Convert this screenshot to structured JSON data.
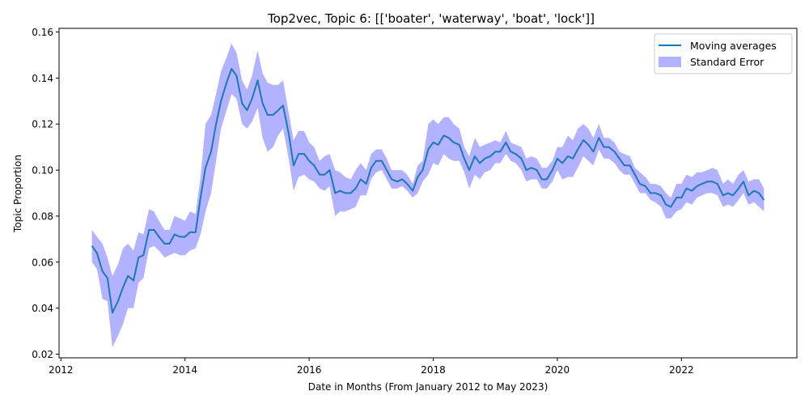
{
  "chart_data": {
    "type": "line",
    "title": "Top2vec, Topic 6: [['boater', 'waterway', 'boat', 'lock']]",
    "xlabel": "Date in Months (From January 2012 to May 2023)",
    "ylabel": "Topic Proportion",
    "xlim": [
      2011.97,
      2023.86
    ],
    "ylim": [
      0.0184,
      0.1616
    ],
    "xticks": [
      2012,
      2014,
      2016,
      2018,
      2020,
      2022
    ],
    "xtick_labels": [
      "2012",
      "2014",
      "2016",
      "2018",
      "2020",
      "2022"
    ],
    "yticks": [
      0.02,
      0.04,
      0.06,
      0.08,
      0.1,
      0.12,
      0.14,
      0.16
    ],
    "ytick_labels": [
      "0.02",
      "0.04",
      "0.06",
      "0.08",
      "0.10",
      "0.12",
      "0.14",
      "0.16"
    ],
    "grid": false,
    "legend_position": "top-right",
    "x": [
      2012.5,
      2012.58,
      2012.67,
      2012.75,
      2012.83,
      2012.92,
      2013.0,
      2013.08,
      2013.17,
      2013.25,
      2013.33,
      2013.42,
      2013.5,
      2013.58,
      2013.67,
      2013.75,
      2013.83,
      2013.92,
      2014.0,
      2014.08,
      2014.17,
      2014.25,
      2014.33,
      2014.42,
      2014.5,
      2014.58,
      2014.67,
      2014.75,
      2014.83,
      2014.92,
      2015.0,
      2015.08,
      2015.17,
      2015.25,
      2015.33,
      2015.42,
      2015.5,
      2015.58,
      2015.67,
      2015.75,
      2015.83,
      2015.92,
      2016.0,
      2016.08,
      2016.17,
      2016.25,
      2016.33,
      2016.42,
      2016.5,
      2016.58,
      2016.67,
      2016.75,
      2016.83,
      2016.92,
      2017.0,
      2017.08,
      2017.17,
      2017.25,
      2017.33,
      2017.42,
      2017.5,
      2017.58,
      2017.67,
      2017.75,
      2017.83,
      2017.92,
      2018.0,
      2018.08,
      2018.17,
      2018.25,
      2018.33,
      2018.42,
      2018.5,
      2018.58,
      2018.67,
      2018.75,
      2018.83,
      2018.92,
      2019.0,
      2019.08,
      2019.17,
      2019.25,
      2019.33,
      2019.42,
      2019.5,
      2019.58,
      2019.67,
      2019.75,
      2019.83,
      2019.92,
      2020.0,
      2020.08,
      2020.17,
      2020.25,
      2020.33,
      2020.42,
      2020.5,
      2020.58,
      2020.67,
      2020.75,
      2020.83,
      2020.92,
      2021.0,
      2021.08,
      2021.17,
      2021.25,
      2021.33,
      2021.42,
      2021.5,
      2021.58,
      2021.67,
      2021.75,
      2021.83,
      2021.92,
      2022.0,
      2022.08,
      2022.17,
      2022.25,
      2022.33,
      2022.42,
      2022.5,
      2022.58,
      2022.67,
      2022.75,
      2022.83,
      2022.92,
      2023.0,
      2023.08,
      2023.17,
      2023.25,
      2023.33
    ],
    "series": [
      {
        "name": "Moving averages",
        "color": "#1f77b4",
        "values": [
          0.067,
          0.064,
          0.056,
          0.053,
          0.038,
          0.043,
          0.049,
          0.054,
          0.052,
          0.062,
          0.063,
          0.074,
          0.074,
          0.071,
          0.068,
          0.068,
          0.072,
          0.071,
          0.071,
          0.073,
          0.073,
          0.088,
          0.101,
          0.108,
          0.12,
          0.13,
          0.138,
          0.144,
          0.141,
          0.129,
          0.126,
          0.131,
          0.139,
          0.129,
          0.124,
          0.124,
          0.126,
          0.128,
          0.116,
          0.102,
          0.107,
          0.107,
          0.104,
          0.102,
          0.098,
          0.098,
          0.1,
          0.09,
          0.091,
          0.09,
          0.09,
          0.092,
          0.096,
          0.094,
          0.101,
          0.104,
          0.104,
          0.1,
          0.096,
          0.095,
          0.096,
          0.094,
          0.091,
          0.097,
          0.1,
          0.109,
          0.112,
          0.111,
          0.115,
          0.114,
          0.112,
          0.111,
          0.105,
          0.1,
          0.106,
          0.103,
          0.105,
          0.106,
          0.108,
          0.108,
          0.112,
          0.108,
          0.107,
          0.105,
          0.1,
          0.101,
          0.1,
          0.096,
          0.096,
          0.1,
          0.105,
          0.103,
          0.106,
          0.105,
          0.109,
          0.113,
          0.111,
          0.108,
          0.114,
          0.11,
          0.11,
          0.108,
          0.105,
          0.102,
          0.102,
          0.098,
          0.094,
          0.093,
          0.09,
          0.09,
          0.089,
          0.085,
          0.084,
          0.088,
          0.088,
          0.092,
          0.091,
          0.093,
          0.094,
          0.095,
          0.095,
          0.094,
          0.089,
          0.09,
          0.089,
          0.092,
          0.095,
          0.089,
          0.091,
          0.09,
          0.087
        ]
      }
    ],
    "band": {
      "name": "Standard Error",
      "color": "#0000ff",
      "upper": [
        0.074,
        0.071,
        0.068,
        0.062,
        0.054,
        0.059,
        0.066,
        0.068,
        0.065,
        0.073,
        0.072,
        0.083,
        0.082,
        0.078,
        0.074,
        0.074,
        0.08,
        0.079,
        0.078,
        0.082,
        0.081,
        0.097,
        0.12,
        0.124,
        0.133,
        0.143,
        0.149,
        0.155,
        0.151,
        0.139,
        0.135,
        0.141,
        0.152,
        0.142,
        0.138,
        0.137,
        0.137,
        0.139,
        0.125,
        0.113,
        0.117,
        0.117,
        0.112,
        0.11,
        0.104,
        0.106,
        0.107,
        0.1,
        0.099,
        0.097,
        0.096,
        0.1,
        0.103,
        0.1,
        0.107,
        0.109,
        0.109,
        0.105,
        0.1,
        0.1,
        0.1,
        0.098,
        0.094,
        0.102,
        0.104,
        0.12,
        0.122,
        0.12,
        0.123,
        0.123,
        0.12,
        0.118,
        0.11,
        0.106,
        0.114,
        0.11,
        0.111,
        0.112,
        0.113,
        0.112,
        0.117,
        0.112,
        0.111,
        0.11,
        0.105,
        0.106,
        0.105,
        0.101,
        0.101,
        0.104,
        0.11,
        0.11,
        0.115,
        0.113,
        0.118,
        0.12,
        0.118,
        0.114,
        0.12,
        0.114,
        0.114,
        0.112,
        0.108,
        0.107,
        0.106,
        0.101,
        0.099,
        0.097,
        0.094,
        0.094,
        0.093,
        0.09,
        0.088,
        0.094,
        0.094,
        0.098,
        0.097,
        0.099,
        0.099,
        0.1,
        0.101,
        0.1,
        0.094,
        0.096,
        0.094,
        0.098,
        0.1,
        0.095,
        0.096,
        0.096,
        0.092
      ],
      "lower": [
        0.06,
        0.057,
        0.044,
        0.043,
        0.023,
        0.028,
        0.033,
        0.04,
        0.04,
        0.051,
        0.053,
        0.066,
        0.067,
        0.065,
        0.062,
        0.063,
        0.064,
        0.063,
        0.063,
        0.065,
        0.066,
        0.072,
        0.082,
        0.09,
        0.104,
        0.118,
        0.126,
        0.133,
        0.131,
        0.12,
        0.118,
        0.121,
        0.127,
        0.114,
        0.108,
        0.11,
        0.115,
        0.118,
        0.105,
        0.091,
        0.097,
        0.098,
        0.096,
        0.095,
        0.092,
        0.091,
        0.093,
        0.08,
        0.082,
        0.082,
        0.083,
        0.084,
        0.089,
        0.089,
        0.096,
        0.099,
        0.1,
        0.096,
        0.092,
        0.092,
        0.093,
        0.091,
        0.088,
        0.09,
        0.095,
        0.098,
        0.103,
        0.102,
        0.107,
        0.105,
        0.104,
        0.104,
        0.099,
        0.092,
        0.098,
        0.096,
        0.099,
        0.1,
        0.103,
        0.103,
        0.107,
        0.104,
        0.103,
        0.1,
        0.095,
        0.096,
        0.096,
        0.092,
        0.092,
        0.095,
        0.1,
        0.096,
        0.097,
        0.097,
        0.101,
        0.106,
        0.104,
        0.102,
        0.109,
        0.105,
        0.105,
        0.103,
        0.1,
        0.098,
        0.098,
        0.094,
        0.09,
        0.09,
        0.087,
        0.086,
        0.084,
        0.079,
        0.079,
        0.082,
        0.083,
        0.086,
        0.085,
        0.088,
        0.089,
        0.09,
        0.09,
        0.089,
        0.084,
        0.085,
        0.084,
        0.087,
        0.09,
        0.085,
        0.086,
        0.084,
        0.082
      ]
    }
  }
}
